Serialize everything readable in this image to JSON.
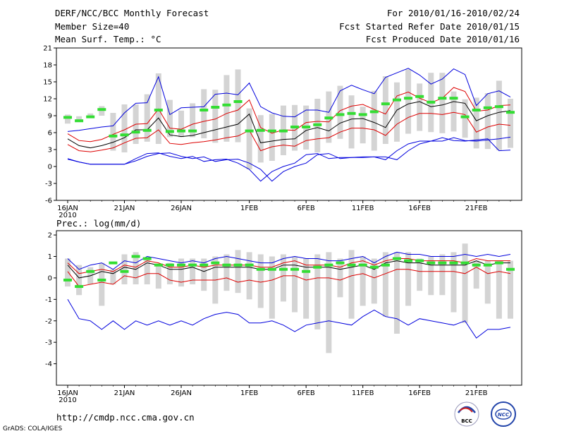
{
  "header": {
    "title": "DERF/NCC/BCC Monthly Forecast",
    "member_size": "Member Size=40",
    "variable": "Mean Surf. Temp.: °C",
    "period": "For 2010/01/16-2010/02/24",
    "start_date": "Fcst Started Refer Date 2010/01/15",
    "produced_date": "Fcst Produced Date 2010/01/16"
  },
  "footer": {
    "url": "http://cmdp.ncc.cma.gov.cn",
    "credit": "GrADS: COLA/IGES",
    "logo_bcc": "BCC",
    "logo_ncc": "NCC"
  },
  "colors": {
    "spread": "#d4d4d4",
    "max_min": "#0000dd",
    "quartile": "#dd0000",
    "mean": "#000000",
    "climate": "#33dd33"
  },
  "chart_data": [
    {
      "type": "line",
      "title": "Mean Surf. Temp.: °C",
      "ylim": [
        -6,
        21
      ],
      "yticks": [
        -6,
        -3,
        0,
        3,
        6,
        9,
        12,
        15,
        18,
        21
      ],
      "xtick_labels": [
        "16JAN",
        "21JAN",
        "26JAN",
        "1FEB",
        "6FEB",
        "11FEB",
        "16FEB",
        "21FEB"
      ],
      "xtick_days": [
        0,
        5,
        10,
        16,
        21,
        26,
        31,
        36
      ],
      "year_label": "2010",
      "days": 40,
      "series": [
        {
          "name": "max",
          "values": [
            1.3,
            0.8,
            0.4,
            0.4,
            0.4,
            0.4,
            1.0,
            1.8,
            2.3,
            2.4,
            1.8,
            1.4,
            1.7,
            0.9,
            1.2,
            1.3,
            0.6,
            -0.5,
            -2.6,
            -0.9,
            0.0,
            0.6,
            2.1,
            2.3,
            1.4,
            1.6,
            1.6,
            1.7,
            1.7,
            1.2,
            2.8,
            4.0,
            4.5,
            4.5,
            5.1,
            4.6,
            4.5,
            4.7,
            4.9,
            5.2
          ]
        },
        {
          "name": "min_cap",
          "values": [
            6.2,
            6.4,
            6.7,
            7.0,
            7.2,
            9.5,
            11.2,
            11.3,
            15.9,
            9.2,
            10.4,
            10.5,
            10.6,
            12.8,
            13.0,
            12.7,
            14.8,
            10.6,
            9.5,
            8.9,
            8.8,
            10.0,
            10.0,
            9.6,
            13.4,
            14.4,
            13.6,
            12.9,
            15.8,
            16.6,
            17.4,
            16.2,
            14.6,
            15.5,
            17.3,
            16.3,
            10.8,
            12.9,
            13.4,
            12.3
          ]
        },
        {
          "name": "upper_quartile",
          "values": [
            5.8,
            4.6,
            4.4,
            4.8,
            5.7,
            6.5,
            7.5,
            7.6,
            10.2,
            6.8,
            6.6,
            7.5,
            8.0,
            8.4,
            9.4,
            10.0,
            11.8,
            6.9,
            5.9,
            6.5,
            6.4,
            7.8,
            8.0,
            7.9,
            9.9,
            10.7,
            11.0,
            10.1,
            9.3,
            12.5,
            13.2,
            12.1,
            11.3,
            12.1,
            14.0,
            13.3,
            9.8,
            10.0,
            10.8,
            10.9
          ]
        },
        {
          "name": "mean",
          "values": [
            4.9,
            3.7,
            3.3,
            3.7,
            4.3,
            5.1,
            6.5,
            6.5,
            8.6,
            5.6,
            5.3,
            5.5,
            6.0,
            6.5,
            7.0,
            7.5,
            9.3,
            4.2,
            4.5,
            4.8,
            4.9,
            6.4,
            6.9,
            6.3,
            7.7,
            8.4,
            8.5,
            7.8,
            6.9,
            10.0,
            11.1,
            11.5,
            10.6,
            10.9,
            11.5,
            11.2,
            8.1,
            9.0,
            9.6,
            9.9
          ]
        },
        {
          "name": "lower_quartile",
          "values": [
            3.9,
            2.8,
            2.6,
            2.9,
            3.3,
            4.2,
            5.0,
            5.1,
            6.5,
            4.1,
            3.9,
            4.2,
            4.4,
            4.7,
            5.1,
            5.4,
            6.4,
            2.8,
            3.5,
            3.8,
            3.6,
            4.6,
            4.9,
            5.1,
            6.1,
            6.8,
            6.8,
            6.5,
            5.5,
            7.5,
            8.7,
            9.4,
            9.4,
            9.2,
            9.6,
            9.2,
            6.1,
            7.0,
            7.5,
            7.3
          ]
        },
        {
          "name": "min",
          "values": [
            1.4,
            0.8,
            0.4,
            0.4,
            0.4,
            0.4,
            1.4,
            2.3,
            2.4,
            1.8,
            1.4,
            1.8,
            0.9,
            1.2,
            1.3,
            0.6,
            -0.5,
            -2.6,
            -0.9,
            0.0,
            0.6,
            2.1,
            2.3,
            1.4,
            1.6,
            1.6,
            1.7,
            1.7,
            1.2,
            2.8,
            4.0,
            4.5,
            4.5,
            5.1,
            4.6,
            4.5,
            4.7,
            4.9,
            2.8,
            2.9
          ]
        },
        {
          "name": "climate",
          "values": [
            8.7,
            8.1,
            8.8,
            10.1,
            5.4,
            5.6,
            6.1,
            6.4,
            10.0,
            6.2,
            6.3,
            6.3,
            10.0,
            10.5,
            10.9,
            11.5,
            6.3,
            6.4,
            6.3,
            6.3,
            7.0,
            7.0,
            7.4,
            8.6,
            9.2,
            9.4,
            9.2,
            9.7,
            11.1,
            11.8,
            12.1,
            12.4,
            11.4,
            12.1,
            12.1,
            8.8,
            10.0,
            10.4,
            10.6,
            9.6
          ]
        }
      ],
      "spread_bars": {
        "low": [
          7.6,
          8.2,
          8.6,
          9.0,
          2.8,
          2.5,
          4.0,
          4.4,
          4.0,
          5.2,
          5.2,
          5.2,
          5.0,
          4.2,
          4.4,
          4.3,
          -0.5,
          0.7,
          1.0,
          2.0,
          2.8,
          3.0,
          2.5,
          4.2,
          4.9,
          3.2,
          4.1,
          2.8,
          4.0,
          4.4,
          5.8,
          6.3,
          6.1,
          5.9,
          6.2,
          5.1,
          3.2,
          3.1,
          2.9,
          3.3
        ],
        "high": [
          9.2,
          8.9,
          9.4,
          10.7,
          9.5,
          11.0,
          11.0,
          12.8,
          16.5,
          11.8,
          9.9,
          11.2,
          13.7,
          13.6,
          16.2,
          17.2,
          10.3,
          9.1,
          9.3,
          10.8,
          10.9,
          10.8,
          12.0,
          13.3,
          14.3,
          12.6,
          10.6,
          13.4,
          16.0,
          14.9,
          17.2,
          14.7,
          16.6,
          16.6,
          13.3,
          11.9,
          12.2,
          13.0,
          15.2,
          12.0
        ]
      }
    },
    {
      "type": "line",
      "title": "Prec.: log(mm/d)",
      "ylim": [
        -5,
        2.2
      ],
      "yticks": [
        -4,
        -3,
        -2,
        -1,
        0,
        1,
        2
      ],
      "xtick_labels": [
        "16JAN",
        "21JAN",
        "26JAN",
        "1FEB",
        "6FEB",
        "11FEB",
        "16FEB",
        "21FEB"
      ],
      "xtick_days": [
        0,
        5,
        10,
        16,
        21,
        26,
        31,
        36
      ],
      "year_label": "2010",
      "days": 40,
      "series": [
        {
          "name": "max",
          "values": [
            0.9,
            0.4,
            0.6,
            0.7,
            0.4,
            0.8,
            0.7,
            1.0,
            0.9,
            0.8,
            0.7,
            0.8,
            0.7,
            0.9,
            1.0,
            0.9,
            0.8,
            0.7,
            0.7,
            0.9,
            1.0,
            0.9,
            0.9,
            0.8,
            0.8,
            0.9,
            1.0,
            0.7,
            1.0,
            1.2,
            1.1,
            1.1,
            1.0,
            1.0,
            1.0,
            1.1,
            1.0,
            1.1,
            1.0,
            1.1
          ]
        },
        {
          "name": "upper_quartile",
          "values": [
            0.7,
            0.2,
            0.3,
            0.4,
            0.3,
            0.6,
            0.5,
            0.8,
            0.7,
            0.5,
            0.5,
            0.6,
            0.5,
            0.6,
            0.6,
            0.6,
            0.6,
            0.5,
            0.5,
            0.7,
            0.8,
            0.6,
            0.6,
            0.6,
            0.5,
            0.7,
            0.8,
            0.6,
            0.8,
            0.9,
            0.9,
            0.8,
            0.8,
            0.8,
            0.8,
            0.7,
            0.9,
            0.8,
            0.8,
            0.8
          ]
        },
        {
          "name": "mean",
          "values": [
            0.6,
            0.0,
            0.1,
            0.3,
            0.2,
            0.5,
            0.4,
            0.7,
            0.6,
            0.4,
            0.4,
            0.5,
            0.3,
            0.5,
            0.5,
            0.5,
            0.5,
            0.4,
            0.4,
            0.6,
            0.6,
            0.5,
            0.5,
            0.5,
            0.4,
            0.5,
            0.6,
            0.4,
            0.7,
            0.8,
            0.7,
            0.7,
            0.6,
            0.6,
            0.6,
            0.6,
            0.8,
            0.6,
            0.7,
            0.7
          ]
        },
        {
          "name": "lower_quartile",
          "values": [
            0.3,
            -0.4,
            -0.3,
            -0.2,
            -0.3,
            0.1,
            0.0,
            0.2,
            0.2,
            -0.1,
            -0.2,
            -0.1,
            -0.1,
            -0.1,
            0.0,
            -0.2,
            -0.1,
            -0.2,
            -0.1,
            0.1,
            0.1,
            -0.1,
            0.0,
            0.0,
            -0.1,
            0.1,
            0.2,
            0.0,
            0.2,
            0.4,
            0.4,
            0.3,
            0.3,
            0.3,
            0.3,
            0.2,
            0.5,
            0.2,
            0.3,
            0.2
          ]
        },
        {
          "name": "min",
          "values": [
            -1.0,
            -1.9,
            -2.0,
            -2.4,
            -2.0,
            -2.4,
            -2.0,
            -2.2,
            -2.0,
            -2.2,
            -2.0,
            -2.2,
            -1.9,
            -1.7,
            -1.6,
            -1.7,
            -2.1,
            -2.1,
            -2.0,
            -2.2,
            -2.5,
            -2.2,
            -2.1,
            -2.0,
            -2.1,
            -2.2,
            -1.8,
            -1.5,
            -1.8,
            -1.9,
            -2.2,
            -1.9,
            -2.0,
            -2.1,
            -2.2,
            -2.0,
            -2.8,
            -2.4,
            -2.4,
            -2.3
          ]
        },
        {
          "name": "climate",
          "values": [
            -0.1,
            -0.4,
            0.3,
            -0.1,
            0.7,
            0.3,
            1.0,
            0.9,
            0.6,
            0.6,
            0.6,
            0.6,
            0.6,
            0.7,
            0.6,
            0.6,
            0.6,
            0.4,
            0.4,
            0.4,
            0.4,
            0.3,
            0.5,
            0.6,
            0.7,
            0.6,
            0.6,
            0.5,
            0.6,
            0.9,
            0.8,
            0.8,
            0.7,
            0.7,
            0.7,
            0.7,
            0.6,
            0.6,
            0.7,
            0.4
          ]
        }
      ],
      "spread_bars": {
        "low": [
          -0.4,
          -0.8,
          -0.3,
          -1.3,
          -0.3,
          -0.3,
          -0.3,
          -0.3,
          -0.5,
          -0.3,
          -0.4,
          -0.3,
          -0.6,
          -1.2,
          -0.6,
          -0.7,
          -1.0,
          -1.4,
          -1.9,
          -1.1,
          -1.6,
          -1.9,
          -2.4,
          -3.5,
          -0.9,
          -1.9,
          -1.3,
          -1.2,
          -1.8,
          -2.6,
          -1.3,
          -0.6,
          -0.8,
          -0.8,
          -1.6,
          -2.1,
          -0.5,
          -1.2,
          -1.9,
          -1.9
        ],
        "high": [
          0.9,
          0.6,
          0.5,
          0.7,
          0.4,
          1.1,
          1.2,
          0.9,
          0.6,
          0.7,
          0.9,
          0.9,
          0.9,
          1.0,
          1.1,
          1.3,
          1.2,
          1.1,
          1.0,
          1.1,
          1.0,
          0.9,
          1.1,
          1.2,
          0.9,
          1.3,
          1.0,
          0.9,
          1.2,
          1.2,
          1.2,
          0.9,
          1.0,
          1.1,
          1.2,
          1.6,
          0.8,
          0.8,
          0.8,
          0.8
        ]
      }
    }
  ]
}
